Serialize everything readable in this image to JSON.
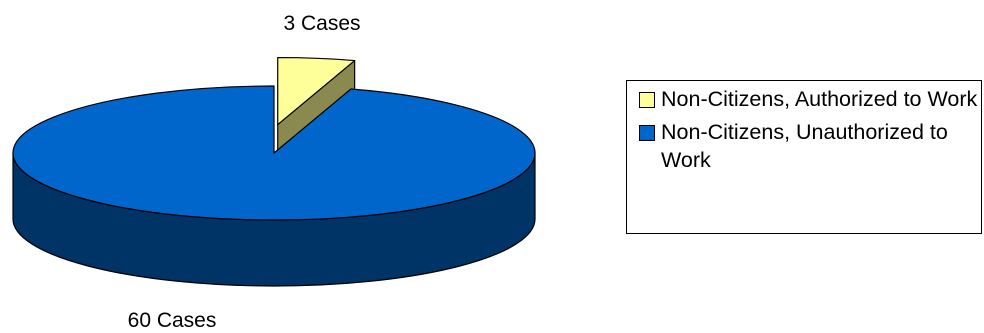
{
  "chart_data": {
    "type": "pie",
    "title": "",
    "slices": [
      {
        "label": "Non-Citizens, Authorized to Work",
        "value": 3,
        "data_label": "3 Cases",
        "color": "#ffff99",
        "side_color": "#8a8a50",
        "exploded": true
      },
      {
        "label": "Non-Citizens, Unauthorized to Work",
        "value": 60,
        "data_label": "60 Cases",
        "color": "#0066cc",
        "side_color": "#003366",
        "exploded": false
      }
    ],
    "legend_position": "right"
  },
  "legend": {
    "items": [
      {
        "label": "Non-Citizens, Authorized to Work",
        "color": "#ffff99"
      },
      {
        "label": "Non-Citizens, Unauthorized to Work",
        "color": "#0066cc"
      }
    ]
  }
}
